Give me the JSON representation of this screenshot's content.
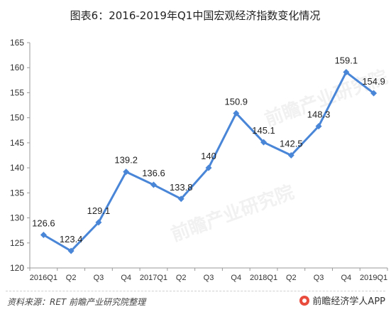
{
  "source_note": "资料来源：RET 前瞻产业研究院整理",
  "brand": {
    "name": "前瞻经济学人APP",
    "logo_icon": "qianzhan-logo-icon"
  },
  "watermark": {
    "text": "前瞻产业研究院"
  },
  "colors": {
    "line": "#4a86d8",
    "axis": "#999999"
  },
  "chart_data": {
    "type": "line",
    "title": "图表6：2016-2019年Q1中国宏观经济指数变化情况",
    "categories": [
      "2016Q1",
      "Q2",
      "Q3",
      "Q4",
      "2017Q1",
      "Q2",
      "Q3",
      "Q4",
      "2018Q1",
      "Q2",
      "Q3",
      "Q4",
      "2019Q1"
    ],
    "values": [
      126.6,
      123.4,
      129.1,
      139.2,
      136.6,
      133.8,
      140,
      150.9,
      145.1,
      142.5,
      148.3,
      159.1,
      154.9
    ],
    "value_labels": [
      "126.6",
      "123.4",
      "129.1",
      "139.2",
      "136.6",
      "133.8",
      "140",
      "150.9",
      "145.1",
      "142.5",
      "148.3",
      "159.1",
      "154.9"
    ],
    "ylim": [
      120,
      165
    ],
    "yticks": [
      120,
      125,
      130,
      135,
      140,
      145,
      150,
      155,
      160,
      165
    ],
    "xlabel": "",
    "ylabel": "",
    "grid": false,
    "legend": "none",
    "marker": "diamond"
  }
}
